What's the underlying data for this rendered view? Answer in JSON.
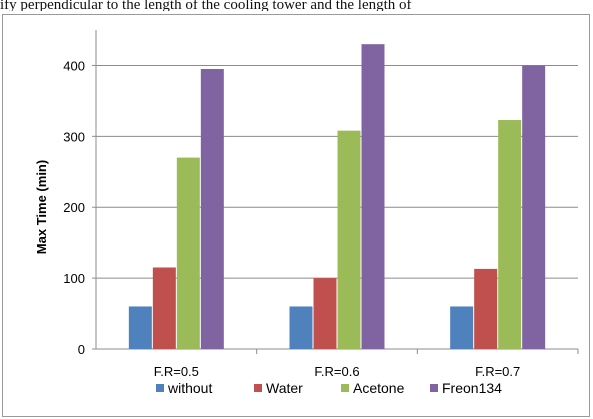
{
  "page": {
    "top_text": "ify perpendicular to the length of the cooling tower and the length of"
  },
  "chart_data": {
    "type": "bar",
    "categories": [
      "F.R=0.5",
      "F.R=0.6",
      "F.R=0.7"
    ],
    "series": [
      {
        "name": "without",
        "color": "#4f81bd",
        "values": [
          60,
          60,
          60
        ]
      },
      {
        "name": "Water",
        "color": "#c0504d",
        "values": [
          115,
          100,
          113
        ]
      },
      {
        "name": "Acetone",
        "color": "#9bbb59",
        "values": [
          270,
          308,
          323
        ]
      },
      {
        "name": "Freon134",
        "color": "#8064a2",
        "values": [
          395,
          430,
          400
        ]
      }
    ],
    "title": "",
    "xlabel": "",
    "ylabel": "Max Time (min)",
    "ylim": [
      0,
      450
    ],
    "yticks": [
      0,
      100,
      200,
      300,
      400
    ],
    "grid": "horizontal",
    "legend_position": "bottom"
  }
}
